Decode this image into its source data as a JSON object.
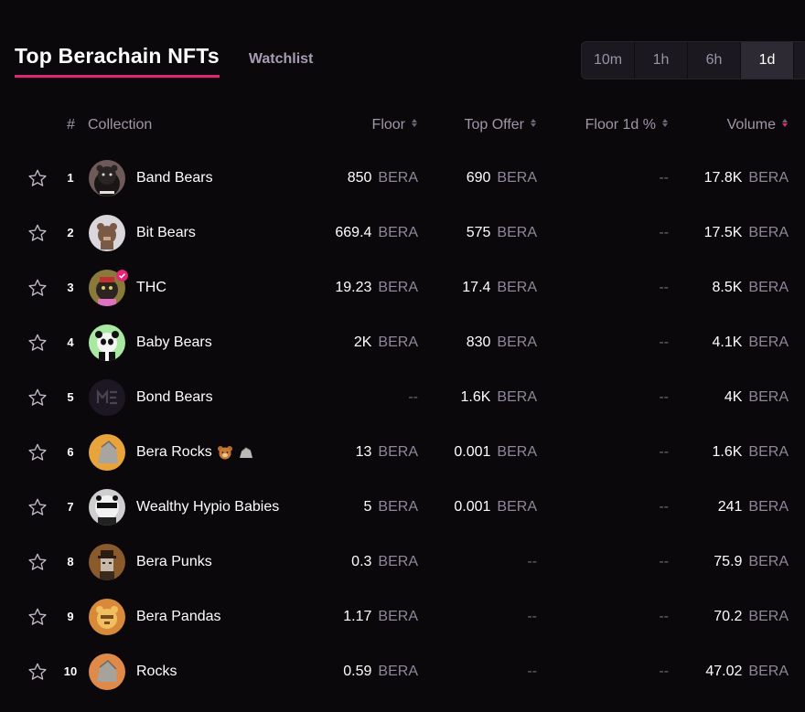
{
  "header": {
    "title": "Top Berachain NFTs",
    "watchlist": "Watchlist",
    "timeframes": [
      "10m",
      "1h",
      "6h",
      "1d"
    ],
    "active_timeframe": "1d",
    "accent_color": "#e42575"
  },
  "table": {
    "columns": {
      "rank": "#",
      "collection": "Collection",
      "floor": "Floor",
      "top_offer": "Top Offer",
      "floor_change": "Floor 1d %",
      "volume": "Volume"
    },
    "sorted_by": "volume",
    "sort_direction": "desc",
    "rows": [
      {
        "rank": "1",
        "name": "Band Bears",
        "floor": "850",
        "floor_unit": "BERA",
        "offer": "690",
        "offer_unit": "BERA",
        "change": "--",
        "volume": "17.8K",
        "volume_unit": "BERA",
        "verified": false
      },
      {
        "rank": "2",
        "name": "Bit Bears",
        "floor": "669.4",
        "floor_unit": "BERA",
        "offer": "575",
        "offer_unit": "BERA",
        "change": "--",
        "volume": "17.5K",
        "volume_unit": "BERA",
        "verified": false
      },
      {
        "rank": "3",
        "name": "THC",
        "floor": "19.23",
        "floor_unit": "BERA",
        "offer": "17.4",
        "offer_unit": "BERA",
        "change": "--",
        "volume": "8.5K",
        "volume_unit": "BERA",
        "verified": true
      },
      {
        "rank": "4",
        "name": "Baby Bears",
        "floor": "2K",
        "floor_unit": "BERA",
        "offer": "830",
        "offer_unit": "BERA",
        "change": "--",
        "volume": "4.1K",
        "volume_unit": "BERA",
        "verified": false
      },
      {
        "rank": "5",
        "name": "Bond Bears",
        "floor": "--",
        "floor_unit": "",
        "offer": "1.6K",
        "offer_unit": "BERA",
        "change": "--",
        "volume": "4K",
        "volume_unit": "BERA",
        "verified": false
      },
      {
        "rank": "6",
        "name": "Bera Rocks",
        "floor": "13",
        "floor_unit": "BERA",
        "offer": "0.001",
        "offer_unit": "BERA",
        "change": "--",
        "volume": "1.6K",
        "volume_unit": "BERA",
        "verified": false
      },
      {
        "rank": "7",
        "name": "Wealthy Hypio Babies",
        "floor": "5",
        "floor_unit": "BERA",
        "offer": "0.001",
        "offer_unit": "BERA",
        "change": "--",
        "volume": "241",
        "volume_unit": "BERA",
        "verified": false
      },
      {
        "rank": "8",
        "name": "Bera Punks",
        "floor": "0.3",
        "floor_unit": "BERA",
        "offer": "--",
        "offer_unit": "",
        "change": "--",
        "volume": "75.9",
        "volume_unit": "BERA",
        "verified": false
      },
      {
        "rank": "9",
        "name": "Bera Pandas",
        "floor": "1.17",
        "floor_unit": "BERA",
        "offer": "--",
        "offer_unit": "",
        "change": "--",
        "volume": "70.2",
        "volume_unit": "BERA",
        "verified": false
      },
      {
        "rank": "10",
        "name": "Rocks",
        "floor": "0.59",
        "floor_unit": "BERA",
        "offer": "--",
        "offer_unit": "",
        "change": "--",
        "volume": "47.02",
        "volume_unit": "BERA",
        "verified": false
      }
    ]
  }
}
